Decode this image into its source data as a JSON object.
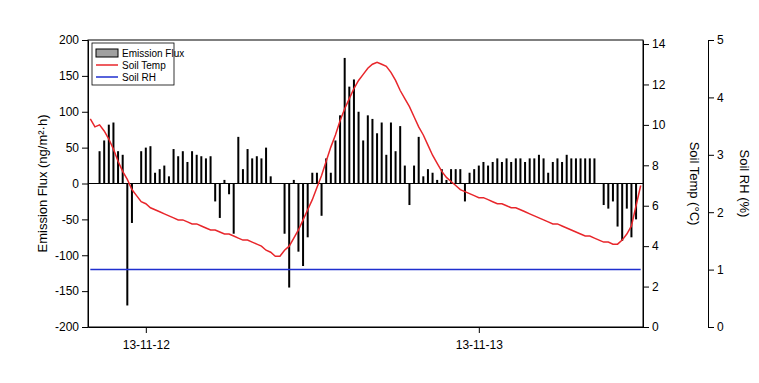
{
  "chart_data": {
    "type": "bar",
    "y_label": "Emission Flux (ng/m²·h)",
    "y2_label": "Soil Temp (°C)",
    "y3_label": "Soil RH (%)",
    "categories": [
      null,
      null,
      null,
      null,
      null,
      null,
      null,
      null,
      null,
      null,
      null,
      null,
      "13-11-12",
      null,
      null,
      null,
      null,
      null,
      null,
      null,
      null,
      null,
      null,
      null,
      null,
      null,
      null,
      null,
      null,
      null,
      null,
      null,
      null,
      null,
      null,
      null,
      null,
      null,
      null,
      null,
      null,
      null,
      null,
      null,
      null,
      null,
      null,
      null,
      null,
      null,
      null,
      null,
      null,
      null,
      null,
      null,
      null,
      null,
      null,
      null,
      null,
      null,
      null,
      null,
      null,
      null,
      null,
      null,
      null,
      null,
      null,
      null,
      null,
      null,
      null,
      null,
      null,
      null,
      null,
      null,
      null,
      null,
      null,
      null,
      "13-11-13",
      null,
      null,
      null,
      null,
      null,
      null,
      null,
      null,
      null,
      null,
      null,
      null,
      null,
      null,
      null,
      null,
      null,
      null,
      null,
      null,
      null,
      null,
      null,
      null,
      null,
      null,
      null,
      null,
      null,
      null,
      null,
      null,
      null,
      null,
      null
    ],
    "ylim": [
      -200,
      200
    ],
    "yticks": [
      -200,
      -150,
      -100,
      -50,
      0,
      50,
      100,
      150,
      200
    ],
    "y2lim": [
      0,
      14.2
    ],
    "y2ticks": [
      0,
      2,
      4,
      6,
      8,
      10,
      12,
      14
    ],
    "y3lim": [
      0,
      5
    ],
    "y3ticks": [
      0,
      1,
      2,
      3,
      4,
      5
    ],
    "legend": "upper left",
    "series": [
      {
        "name": "Emission Flux",
        "type": "bar",
        "color": "#000000",
        "values": [
          null,
          null,
          45,
          60,
          82,
          85,
          45,
          40,
          -170,
          -55,
          null,
          45,
          50,
          52,
          15,
          20,
          25,
          10,
          48,
          38,
          45,
          30,
          45,
          40,
          38,
          35,
          38,
          -25,
          -48,
          5,
          -15,
          -70,
          65,
          20,
          48,
          35,
          38,
          35,
          50,
          10,
          null,
          null,
          -70,
          -145,
          5,
          -95,
          -115,
          -75,
          15,
          15,
          -45,
          35,
          15,
          60,
          95,
          175,
          135,
          145,
          100,
          60,
          95,
          90,
          70,
          85,
          40,
          85,
          45,
          80,
          25,
          -30,
          25,
          65,
          10,
          20,
          15,
          5,
          20,
          5,
          20,
          20,
          20,
          -25,
          15,
          20,
          25,
          30,
          25,
          30,
          35,
          30,
          35,
          30,
          35,
          35,
          30,
          35,
          35,
          40,
          35,
          15,
          30,
          35,
          30,
          40,
          35,
          35,
          35,
          35,
          35,
          35,
          null,
          -30,
          -35,
          -25,
          -60,
          -80,
          -35,
          -75,
          -50,
          null
        ]
      },
      {
        "name": "Soil Temp",
        "type": "line",
        "axis": "y2",
        "color": "#e8262b",
        "values": [
          10.3,
          9.9,
          10.0,
          9.7,
          9.3,
          8.8,
          8.2,
          7.7,
          7.3,
          6.8,
          6.5,
          6.2,
          6.1,
          5.9,
          5.8,
          5.7,
          5.6,
          5.5,
          5.4,
          5.3,
          5.3,
          5.2,
          5.1,
          5.1,
          5.0,
          4.9,
          4.8,
          4.8,
          4.7,
          4.6,
          4.6,
          4.5,
          4.4,
          4.3,
          4.3,
          4.2,
          4.1,
          4.0,
          3.8,
          3.7,
          3.5,
          3.5,
          3.8,
          4.0,
          4.4,
          4.8,
          5.3,
          5.8,
          6.3,
          6.9,
          7.5,
          8.2,
          8.9,
          9.5,
          10.2,
          10.8,
          11.3,
          11.8,
          12.2,
          12.5,
          12.8,
          13.0,
          13.1,
          13.0,
          12.9,
          12.6,
          12.2,
          11.7,
          11.3,
          10.9,
          10.4,
          9.9,
          9.5,
          9.0,
          8.5,
          8.1,
          7.7,
          7.4,
          7.2,
          7.0,
          6.8,
          6.7,
          6.6,
          6.5,
          6.4,
          6.4,
          6.3,
          6.2,
          6.1,
          6.1,
          6.0,
          5.9,
          5.9,
          5.8,
          5.7,
          5.6,
          5.5,
          5.4,
          5.3,
          5.2,
          5.1,
          5.1,
          5.0,
          4.9,
          4.8,
          4.7,
          4.6,
          4.5,
          4.5,
          4.4,
          4.3,
          4.2,
          4.2,
          4.1,
          4.1,
          4.3,
          4.6,
          5.0,
          6.0,
          7.0
        ]
      },
      {
        "name": "Soil RH",
        "type": "line",
        "axis": "y3",
        "color": "#1f2fcf",
        "values": [
          1,
          1,
          1,
          1,
          1,
          1,
          1,
          1,
          1,
          1,
          1,
          1,
          1,
          1,
          1,
          1,
          1,
          1,
          1,
          1,
          1,
          1,
          1,
          1,
          1,
          1,
          1,
          1,
          1,
          1,
          1,
          1,
          1,
          1,
          1,
          1,
          1,
          1,
          1,
          1,
          1,
          1,
          1,
          1,
          1,
          1,
          1,
          1,
          1,
          1,
          1,
          1,
          1,
          1,
          1,
          1,
          1,
          1,
          1,
          1,
          1,
          1,
          1,
          1,
          1,
          1,
          1,
          1,
          1,
          1,
          1,
          1,
          1,
          1,
          1,
          1,
          1,
          1,
          1,
          1,
          1,
          1,
          1,
          1,
          1,
          1,
          1,
          1,
          1,
          1,
          1,
          1,
          1,
          1,
          1,
          1,
          1,
          1,
          1,
          1,
          1,
          1,
          1,
          1,
          1,
          1,
          1,
          1,
          1,
          1,
          1,
          1,
          1,
          1,
          1,
          1,
          1,
          1,
          1,
          1
        ]
      }
    ]
  }
}
